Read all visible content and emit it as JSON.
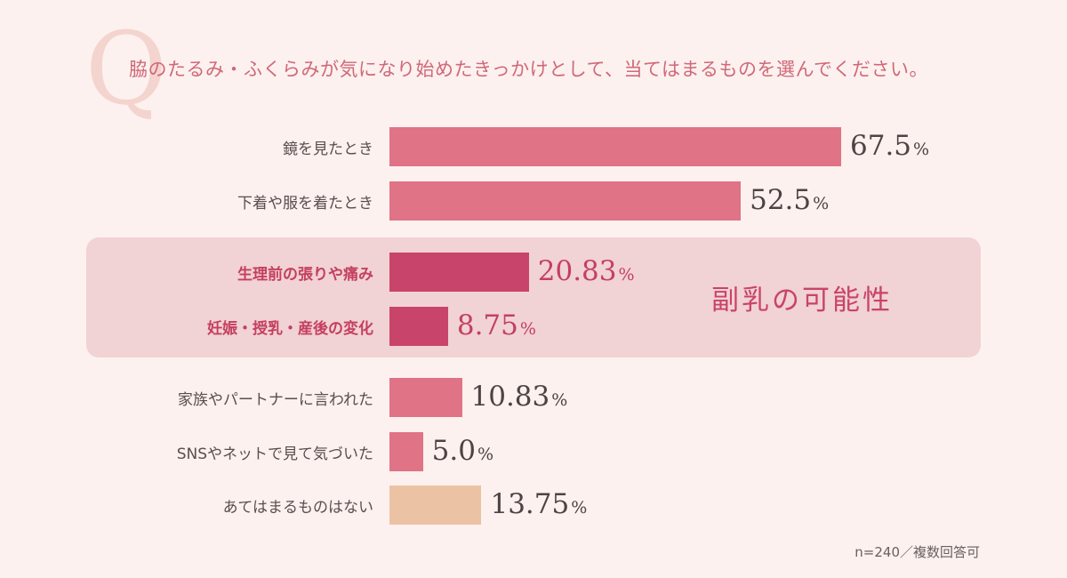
{
  "question": {
    "mark": "Q",
    "text": "脇のたるみ・ふくらみが気になり始めたきっかけとして、当てはまるものを選んでください。"
  },
  "highlight": {
    "label": "副乳の可能性"
  },
  "footnote": "n=240／複数回答可",
  "colors": {
    "normal": "#e07386",
    "highlight": "#c9446a",
    "none": "#ebc3a4",
    "highlight_bg": "#f1d2d5"
  },
  "chart_data": {
    "type": "bar",
    "orientation": "horizontal",
    "unit": "%",
    "xlim": [
      0,
      100
    ],
    "categories": [
      "鏡を見たとき",
      "下着や服を着たとき",
      "生理前の張りや痛み",
      "妊娠・授乳・産後の変化",
      "家族やパートナーに言われた",
      "SNSやネットで見て気づいた",
      "あてはまるものはない"
    ],
    "values": [
      67.5,
      52.5,
      20.83,
      8.75,
      10.83,
      5.0,
      13.75
    ],
    "value_labels": [
      "67.5",
      "52.5",
      "20.83",
      "8.75",
      "10.83",
      "5.0",
      "13.75"
    ],
    "highlighted": [
      false,
      false,
      true,
      true,
      false,
      false,
      false
    ],
    "grid": false,
    "legend": "none"
  }
}
